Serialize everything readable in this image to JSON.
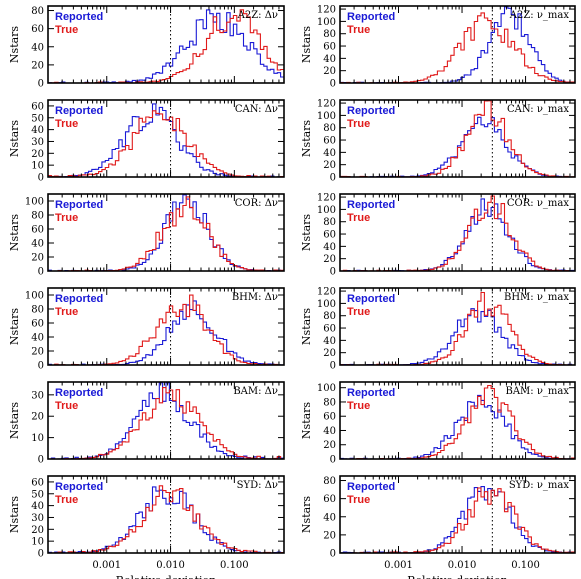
{
  "figure": {
    "ylabel": "Nstars",
    "xlabel": "Relative deviation",
    "x_ticks": [
      "0.001",
      "0.010",
      "0.100"
    ],
    "x_tick_values": [
      0.001,
      0.01,
      0.1
    ],
    "x_scale": "log",
    "xlim": [
      0.00012,
      0.6
    ],
    "colors": {
      "reported": "#1a1ad6",
      "true": "#e01a1a",
      "ref_line": "#000000"
    }
  },
  "chart_data": [
    {
      "type": "histogram",
      "title": "A2Z: Δν",
      "pipeline": "A2Z",
      "param": "Δν",
      "ylim": [
        0,
        85
      ],
      "yticks": [
        0,
        20,
        40,
        60,
        80
      ],
      "ref_line": 0.01,
      "legend": [
        "Reported",
        "True"
      ],
      "series": [
        {
          "name": "Reported",
          "peak": 70,
          "center": 0.055,
          "width": 0.48,
          "seed": 11
        },
        {
          "name": "True",
          "peak": 75,
          "center": 0.09,
          "width": 0.42,
          "seed": 17
        }
      ]
    },
    {
      "type": "histogram",
      "title": "A2Z: ν_max",
      "pipeline": "A2Z",
      "param": "νmax",
      "ylim": [
        0,
        125
      ],
      "yticks": [
        0,
        20,
        40,
        60,
        80,
        100,
        120
      ],
      "ref_line": 0.03,
      "legend": [
        "Reported",
        "True"
      ],
      "series": [
        {
          "name": "Reported",
          "peak": 108,
          "center": 0.055,
          "width": 0.32,
          "seed": 23
        },
        {
          "name": "True",
          "peak": 95,
          "center": 0.025,
          "width": 0.42,
          "seed": 29
        }
      ]
    },
    {
      "type": "histogram",
      "title": "CAN: Δν",
      "pipeline": "CAN",
      "param": "Δν",
      "ylim": [
        0,
        65
      ],
      "yticks": [
        0,
        10,
        20,
        30,
        40,
        50,
        60
      ],
      "ref_line": 0.01,
      "legend": [
        "Reported",
        "True"
      ],
      "series": [
        {
          "name": "Reported",
          "peak": 53,
          "center": 0.005,
          "width": 0.42,
          "seed": 31
        },
        {
          "name": "True",
          "peak": 55,
          "center": 0.007,
          "width": 0.42,
          "seed": 37
        }
      ]
    },
    {
      "type": "histogram",
      "title": "CAN: ν_max",
      "pipeline": "CAN",
      "param": "νmax",
      "ylim": [
        0,
        125
      ],
      "yticks": [
        0,
        20,
        40,
        60,
        80,
        100,
        120
      ],
      "ref_line": 0.03,
      "legend": [
        "Reported",
        "True"
      ],
      "series": [
        {
          "name": "Reported",
          "peak": 88,
          "center": 0.022,
          "width": 0.36,
          "seed": 41
        },
        {
          "name": "True",
          "peak": 108,
          "center": 0.025,
          "width": 0.33,
          "seed": 43
        }
      ]
    },
    {
      "type": "histogram",
      "title": "COR: Δν",
      "pipeline": "COR",
      "param": "Δν",
      "ylim": [
        0,
        110
      ],
      "yticks": [
        0,
        20,
        40,
        60,
        80,
        100
      ],
      "ref_line": 0.01,
      "legend": [
        "Reported",
        "True"
      ],
      "series": [
        {
          "name": "Reported",
          "peak": 98,
          "center": 0.018,
          "width": 0.34,
          "seed": 47
        },
        {
          "name": "True",
          "peak": 92,
          "center": 0.017,
          "width": 0.36,
          "seed": 53
        }
      ]
    },
    {
      "type": "histogram",
      "title": "COR: ν_max",
      "pipeline": "COR",
      "param": "νmax",
      "ylim": [
        0,
        125
      ],
      "yticks": [
        0,
        20,
        40,
        60,
        80,
        100,
        120
      ],
      "ref_line": 0.03,
      "legend": [
        "Reported",
        "True"
      ],
      "series": [
        {
          "name": "Reported",
          "peak": 100,
          "center": 0.025,
          "width": 0.34,
          "seed": 59
        },
        {
          "name": "True",
          "peak": 110,
          "center": 0.027,
          "width": 0.33,
          "seed": 61
        }
      ]
    },
    {
      "type": "histogram",
      "title": "BHM: Δν",
      "pipeline": "BHM",
      "param": "Δν",
      "ylim": [
        0,
        110
      ],
      "yticks": [
        0,
        20,
        40,
        60,
        80,
        100
      ],
      "ref_line": 0.01,
      "legend": [
        "Reported",
        "True"
      ],
      "series": [
        {
          "name": "Reported",
          "peak": 78,
          "center": 0.022,
          "width": 0.37,
          "seed": 67
        },
        {
          "name": "True",
          "peak": 88,
          "center": 0.015,
          "width": 0.39,
          "seed": 71
        }
      ]
    },
    {
      "type": "histogram",
      "title": "BHM: ν_max",
      "pipeline": "BHM",
      "param": "νmax",
      "ylim": [
        0,
        125
      ],
      "yticks": [
        0,
        20,
        40,
        60,
        80,
        100,
        120
      ],
      "ref_line": 0.03,
      "legend": [
        "Reported",
        "True"
      ],
      "series": [
        {
          "name": "Reported",
          "peak": 85,
          "center": 0.018,
          "width": 0.36,
          "seed": 73
        },
        {
          "name": "True",
          "peak": 100,
          "center": 0.025,
          "width": 0.34,
          "seed": 79
        }
      ]
    },
    {
      "type": "histogram",
      "title": "BAM: Δν",
      "pipeline": "BAM",
      "param": "Δν",
      "ylim": [
        0,
        36
      ],
      "yticks": [
        0,
        10,
        20,
        30
      ],
      "ref_line": 0.01,
      "legend": [
        "Reported",
        "True"
      ],
      "series": [
        {
          "name": "Reported",
          "peak": 30,
          "center": 0.008,
          "width": 0.42,
          "seed": 83
        },
        {
          "name": "True",
          "peak": 29,
          "center": 0.01,
          "width": 0.44,
          "seed": 89
        }
      ]
    },
    {
      "type": "histogram",
      "title": "BAM: ν_max",
      "pipeline": "BAM",
      "param": "νmax",
      "ylim": [
        0,
        108
      ],
      "yticks": [
        0,
        20,
        40,
        60,
        80,
        100
      ],
      "ref_line": 0.03,
      "legend": [
        "Reported",
        "True"
      ],
      "series": [
        {
          "name": "Reported",
          "peak": 85,
          "center": 0.02,
          "width": 0.37,
          "seed": 97
        },
        {
          "name": "True",
          "peak": 90,
          "center": 0.026,
          "width": 0.36,
          "seed": 101
        }
      ]
    },
    {
      "type": "histogram",
      "title": "SYD: Δν",
      "pipeline": "SYD",
      "param": "Δν",
      "ylim": [
        0,
        65
      ],
      "yticks": [
        0,
        10,
        20,
        30,
        40,
        50,
        60
      ],
      "ref_line": 0.01,
      "legend": [
        "Reported",
        "True"
      ],
      "series": [
        {
          "name": "Reported",
          "peak": 52,
          "center": 0.009,
          "width": 0.42,
          "seed": 103
        },
        {
          "name": "True",
          "peak": 50,
          "center": 0.01,
          "width": 0.42,
          "seed": 107
        }
      ]
    },
    {
      "type": "histogram",
      "title": "SYD: ν_max",
      "pipeline": "SYD",
      "param": "νmax",
      "ylim": [
        0,
        85
      ],
      "yticks": [
        0,
        20,
        40,
        60,
        80
      ],
      "ref_line": 0.03,
      "legend": [
        "Reported",
        "True"
      ],
      "series": [
        {
          "name": "Reported",
          "peak": 70,
          "center": 0.025,
          "width": 0.36,
          "seed": 109
        },
        {
          "name": "True",
          "peak": 68,
          "center": 0.028,
          "width": 0.36,
          "seed": 113
        }
      ]
    }
  ]
}
